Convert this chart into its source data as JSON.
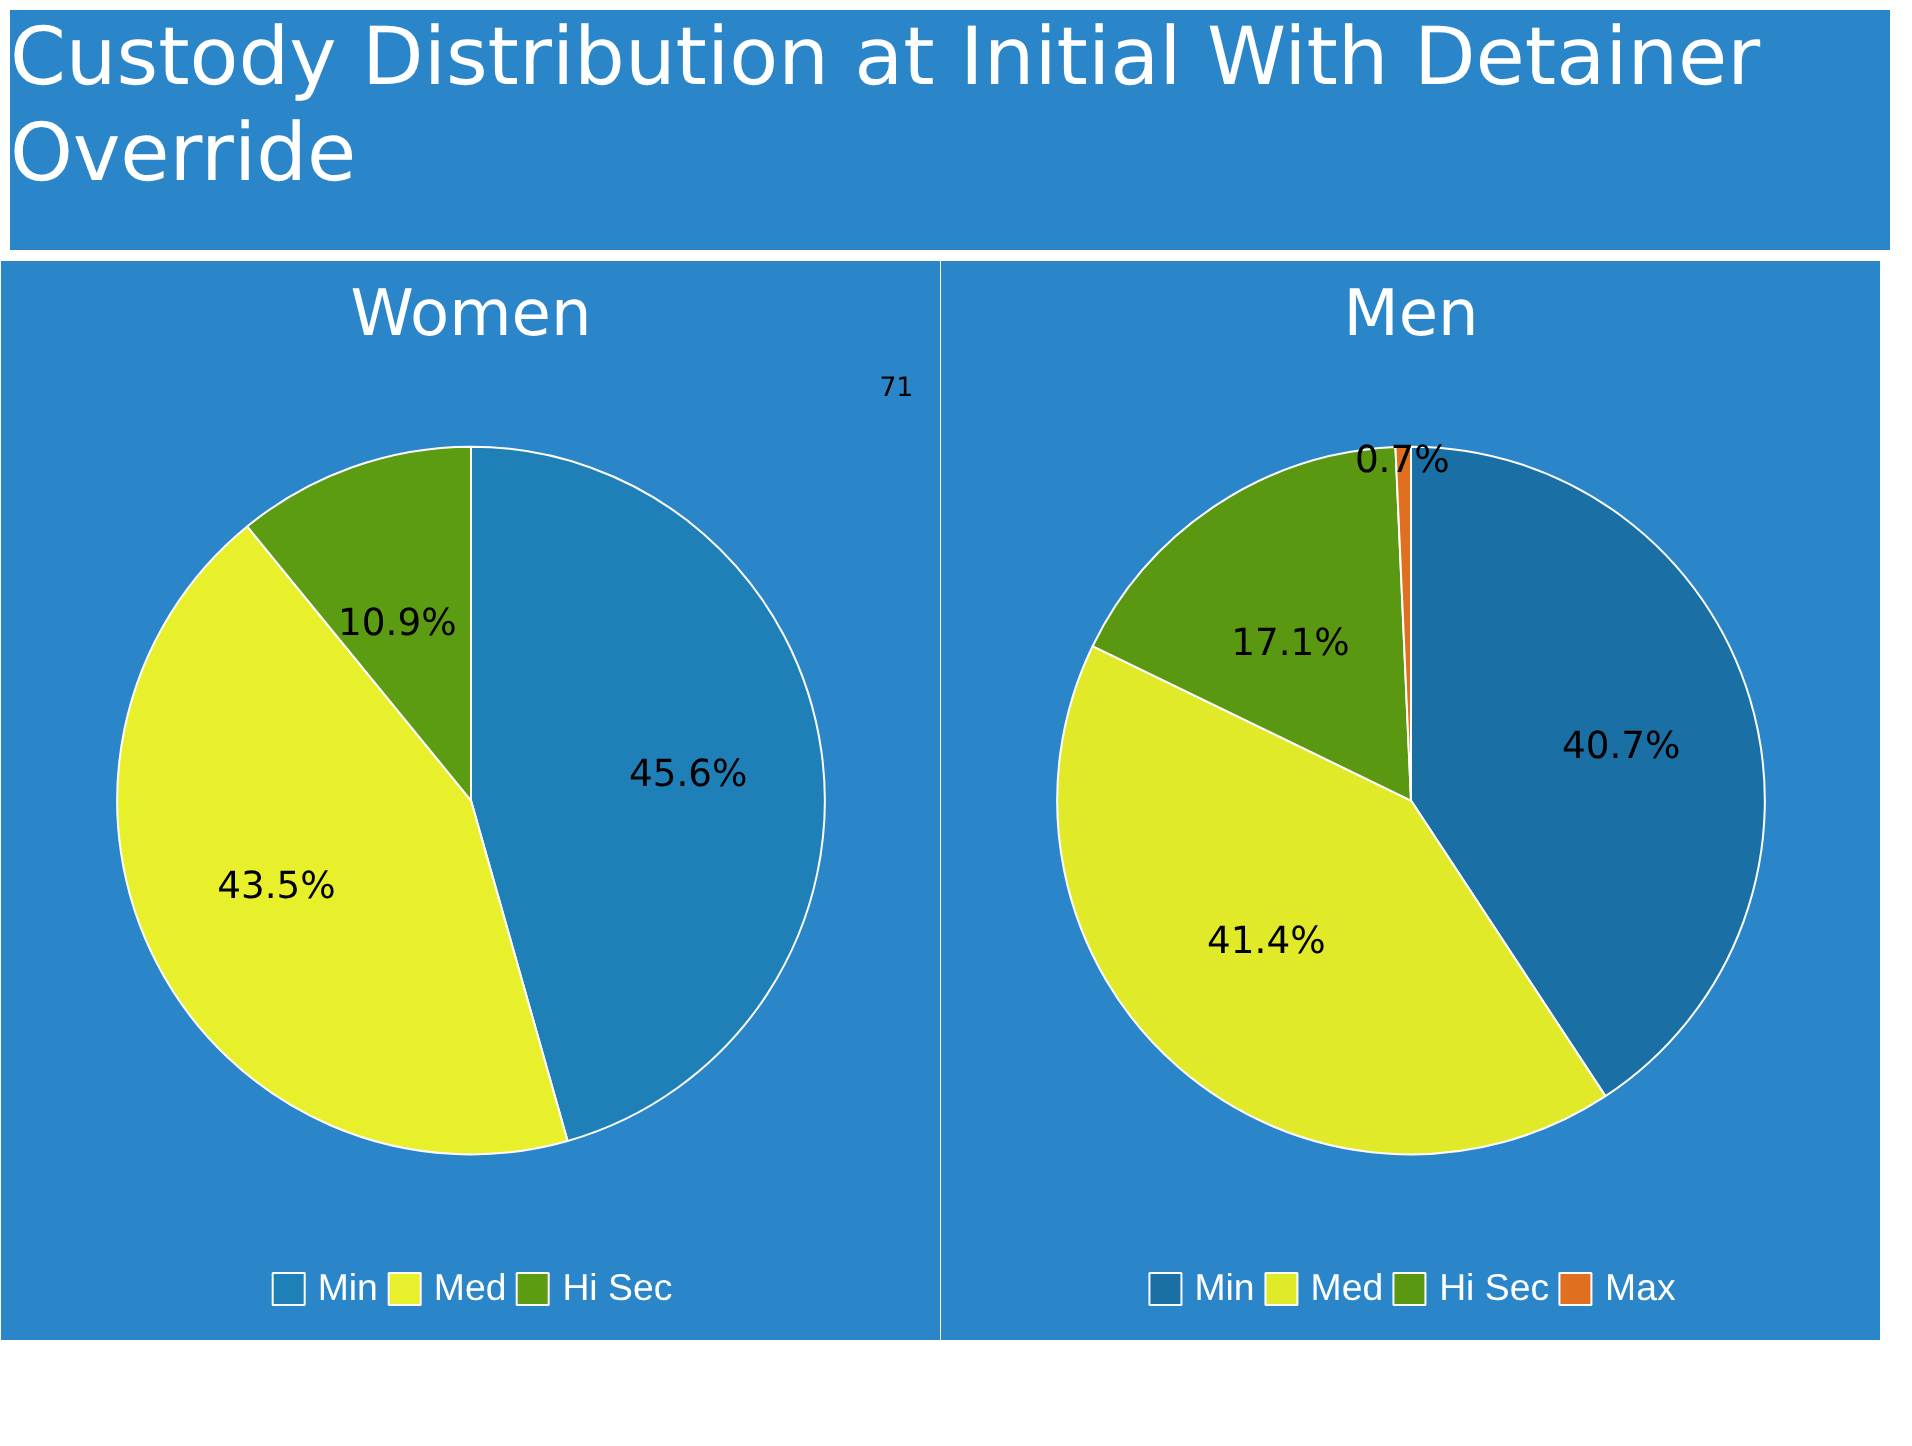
{
  "chart_data": [
    {
      "type": "pie",
      "title": "Custody Distribution at Initial With Detainer Override",
      "subtitle": "Women",
      "categories": [
        "Min",
        "Med",
        "Hi Sec"
      ],
      "values": [
        45.6,
        43.5,
        10.9
      ],
      "colors": [
        "#1f80b8",
        "#e8f02c",
        "#5c9c12"
      ],
      "value_labels": [
        "45.6%",
        "43.5%",
        "10.9%"
      ],
      "legend": "bottom",
      "annotations": [
        "71"
      ]
    },
    {
      "type": "pie",
      "title": "Men",
      "categories": [
        "Min",
        "Med",
        "Hi Sec",
        "Max"
      ],
      "values": [
        40.7,
        41.4,
        17.1,
        0.7
      ],
      "colors": [
        "#1a6fa4",
        "#e0ea28",
        "#5a9812",
        "#e07020"
      ],
      "value_labels": [
        "40.7%",
        "41.4%",
        "17.1%",
        "0.7%"
      ],
      "legend": "bottom"
    }
  ]
}
